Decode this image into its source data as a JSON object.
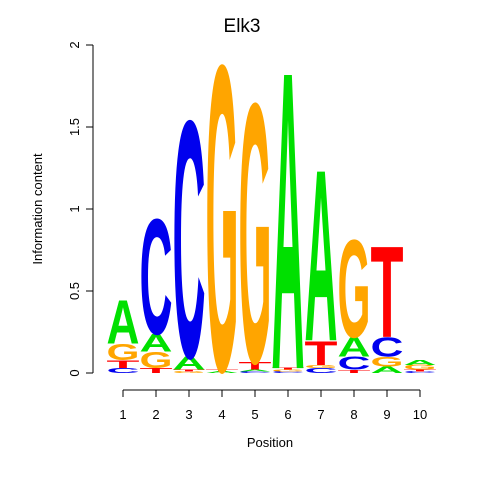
{
  "chart_data": {
    "type": "sequence-logo",
    "title": "Elk3",
    "xlabel": "Position",
    "ylabel": "Information content",
    "ylim": [
      0,
      2
    ],
    "y_ticks": [
      "0",
      "0.5",
      "1",
      "1.5",
      "2"
    ],
    "x_ticks": [
      "1",
      "2",
      "3",
      "4",
      "5",
      "6",
      "7",
      "8",
      "9",
      "10"
    ],
    "colors": {
      "A": "#00e000",
      "C": "#0000ee",
      "G": "#ffa500",
      "T": "#ff0000"
    },
    "positions": [
      [
        [
          "C",
          0.03
        ],
        [
          "T",
          0.05
        ],
        [
          "G",
          0.1
        ],
        [
          "A",
          0.27
        ]
      ],
      [
        [
          "T",
          0.03
        ],
        [
          "G",
          0.1
        ],
        [
          "A",
          0.11
        ],
        [
          "C",
          0.72
        ]
      ],
      [
        [
          "G",
          0.01
        ],
        [
          "T",
          0.01
        ],
        [
          "A",
          0.08
        ],
        [
          "C",
          1.48
        ]
      ],
      [
        [
          "A",
          0.01
        ],
        [
          "T",
          0.01
        ],
        [
          "G",
          1.91
        ]
      ],
      [
        [
          "C",
          0.01
        ],
        [
          "A",
          0.01
        ],
        [
          "T",
          0.05
        ],
        [
          "G",
          1.62
        ]
      ],
      [
        [
          "C",
          0.01
        ],
        [
          "G",
          0.01
        ],
        [
          "T",
          0.01
        ],
        [
          "A",
          1.86
        ]
      ],
      [
        [
          "C",
          0.03
        ],
        [
          "G",
          0.02
        ],
        [
          "T",
          0.15
        ],
        [
          "A",
          1.07
        ]
      ],
      [
        [
          "T",
          0.02
        ],
        [
          "C",
          0.08
        ],
        [
          "A",
          0.12
        ],
        [
          "G",
          0.61
        ]
      ],
      [
        [
          "A",
          0.04
        ],
        [
          "G",
          0.06
        ],
        [
          "C",
          0.12
        ],
        [
          "T",
          0.57
        ]
      ],
      [
        [
          "C",
          0.01
        ],
        [
          "T",
          0.01
        ],
        [
          "G",
          0.03
        ],
        [
          "A",
          0.03
        ]
      ]
    ]
  }
}
